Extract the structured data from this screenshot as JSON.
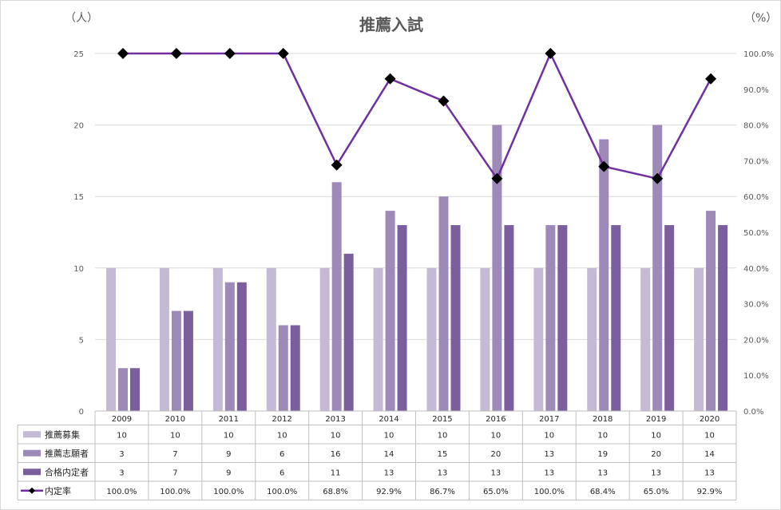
{
  "chart_data": {
    "type": "bar",
    "title": "推薦入試",
    "left_unit": "（人）",
    "right_unit": "（%）",
    "categories": [
      "2009",
      "2010",
      "2011",
      "2012",
      "2013",
      "2014",
      "2015",
      "2016",
      "2017",
      "2018",
      "2019",
      "2020"
    ],
    "ylim": [
      0,
      25
    ],
    "y_ticks": [
      "0",
      "5",
      "10",
      "15",
      "20",
      "25"
    ],
    "y2lim": [
      0,
      100
    ],
    "y2_ticks": [
      "0.0%",
      "10.0%",
      "20.0%",
      "30.0%",
      "40.0%",
      "50.0%",
      "60.0%",
      "70.0%",
      "80.0%",
      "90.0%",
      "100.0%"
    ],
    "grid": true,
    "legend": "data-table",
    "series": [
      {
        "name": "推薦募集",
        "type": "bar",
        "color": "#c4bad6",
        "values": [
          10,
          10,
          10,
          10,
          10,
          10,
          10,
          10,
          10,
          10,
          10,
          10
        ]
      },
      {
        "name": "推薦志願者",
        "type": "bar",
        "color": "#9d8ab8",
        "values": [
          3,
          7,
          9,
          6,
          16,
          14,
          15,
          20,
          13,
          19,
          20,
          14
        ]
      },
      {
        "name": "合格内定者",
        "type": "bar",
        "color": "#7b5e9e",
        "values": [
          3,
          7,
          9,
          6,
          11,
          13,
          13,
          13,
          13,
          13,
          13,
          13
        ]
      },
      {
        "name": "内定率",
        "type": "line",
        "axis": "right",
        "color": "#7030a0",
        "marker_color": "#000000",
        "values": [
          100.0,
          100.0,
          100.0,
          100.0,
          68.8,
          92.9,
          86.7,
          65.0,
          100.0,
          68.4,
          65.0,
          92.9
        ],
        "labels": [
          "100.0%",
          "100.0%",
          "100.0%",
          "100.0%",
          "68.8%",
          "92.9%",
          "86.7%",
          "65.0%",
          "100.0%",
          "68.4%",
          "65.0%",
          "92.9%"
        ]
      }
    ]
  }
}
